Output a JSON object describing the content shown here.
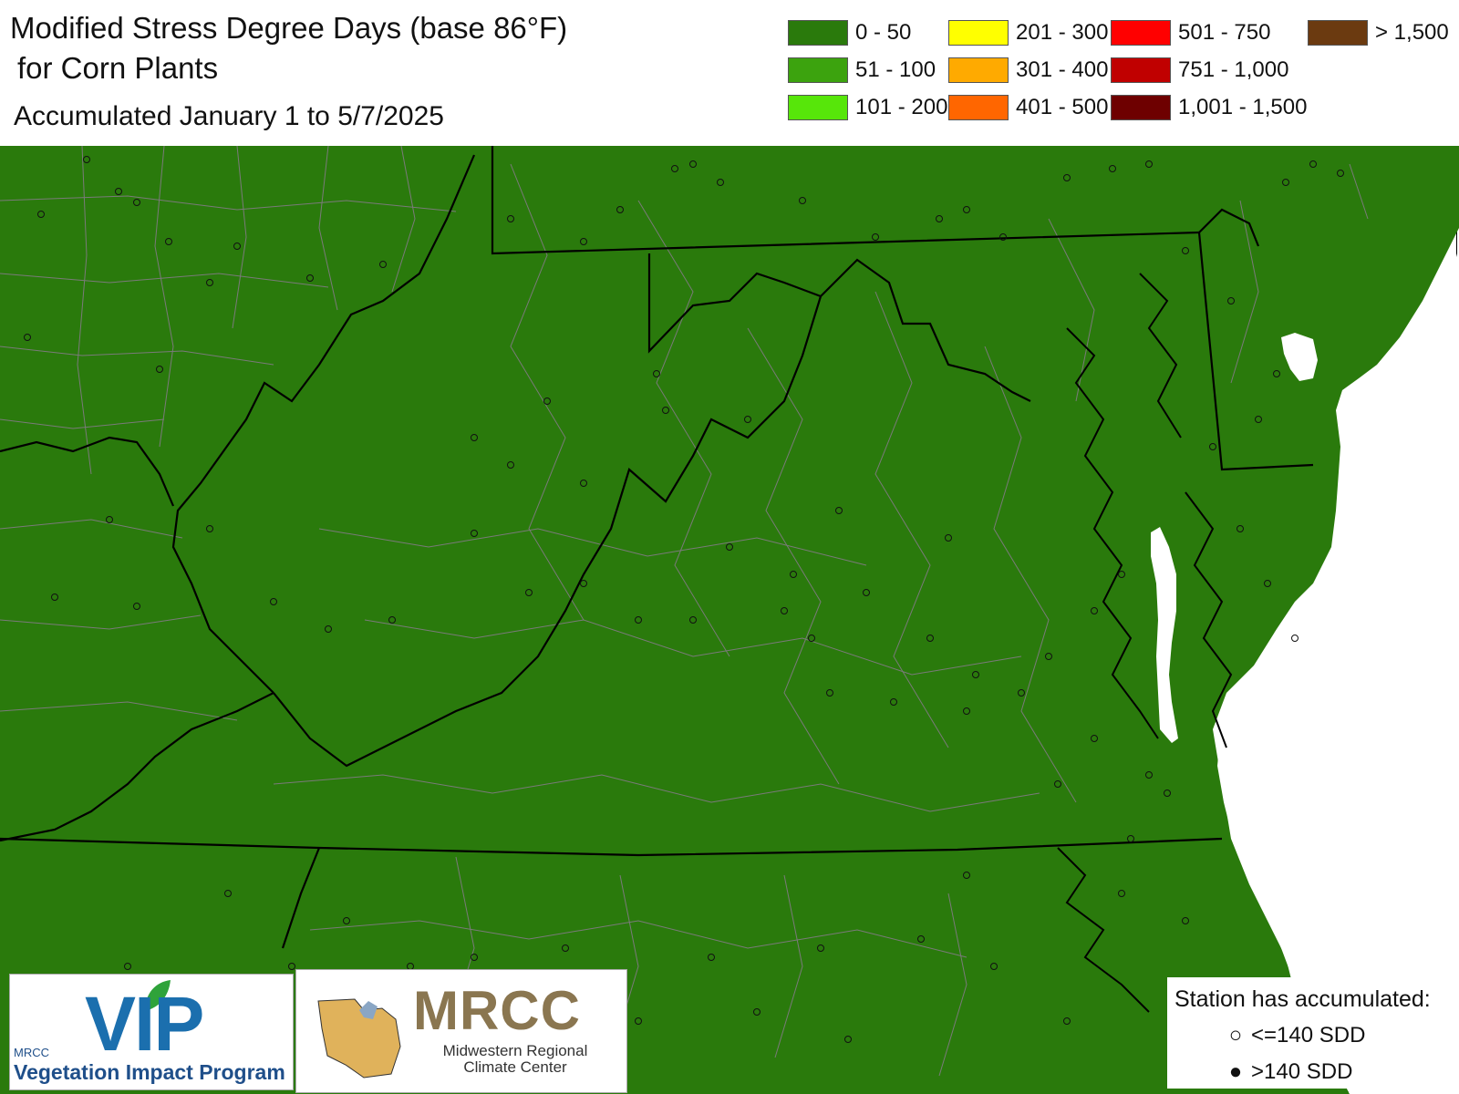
{
  "title": {
    "line1": "Modified Stress Degree Days (base 86°F)",
    "line2": "for Corn Plants",
    "subtitle": "Accumulated January 1 to 5/7/2025"
  },
  "legend": [
    {
      "label": "0 - 50",
      "color": "#2a7a0c"
    },
    {
      "label": "51 - 100",
      "color": "#3ca30e"
    },
    {
      "label": "101 - 200",
      "color": "#57e60a"
    },
    {
      "label": "201 - 300",
      "color": "#ffff00"
    },
    {
      "label": "301 - 400",
      "color": "#ffaa00"
    },
    {
      "label": "401 - 500",
      "color": "#ff6600"
    },
    {
      "label": "501 - 750",
      "color": "#ff0000"
    },
    {
      "label": "751 - 1,000",
      "color": "#c00000"
    },
    {
      "label": "1,001 - 1,500",
      "color": "#6e0000"
    },
    {
      "label": "> 1,500",
      "color": "#6b3a10"
    }
  ],
  "map": {
    "fill_color": "#2a7a0c",
    "state_border_color": "#000000",
    "county_border_color": "#7a7a7a",
    "station_count_shown": "all stations <=140 SDD"
  },
  "logos": {
    "vip_big": "VIP",
    "vip_small": "MRCC",
    "vip_program": "Vegetation Impact Program",
    "mrcc_big": "MRCC",
    "mrcc_sub1": "Midwestern Regional",
    "mrcc_sub2": "Climate Center"
  },
  "station_legend": {
    "title": "Station has accumulated:",
    "open_label": "<=140 SDD",
    "filled_label": ">140 SDD",
    "open_symbol": "○",
    "filled_symbol": "●"
  }
}
